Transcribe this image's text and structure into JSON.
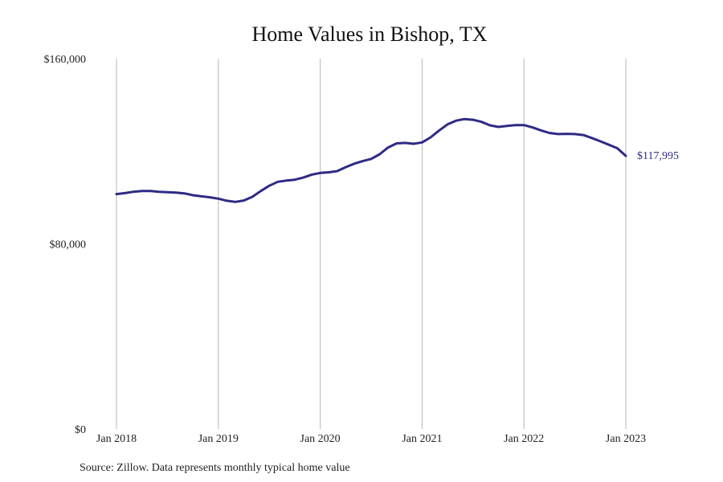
{
  "chart_data": {
    "type": "line",
    "title": "Home Values in Bishop, TX",
    "xlabel": "",
    "ylabel": "",
    "source": "Source: Zillow. Data represents monthly typical home value",
    "x_ticks": [
      {
        "label": "Jan 2018",
        "value": 0
      },
      {
        "label": "Jan 2019",
        "value": 12
      },
      {
        "label": "Jan 2020",
        "value": 24
      },
      {
        "label": "Jan 2021",
        "value": 36
      },
      {
        "label": "Jan 2022",
        "value": 48
      },
      {
        "label": "Jan 2023",
        "value": 60
      }
    ],
    "y_ticks": [
      {
        "label": "$160,000",
        "value": 160000
      },
      {
        "label": "$80,000",
        "value": 80000
      },
      {
        "label": "$0",
        "value": 0
      }
    ],
    "ylim": [
      0,
      160000
    ],
    "xlim": [
      0,
      60
    ],
    "grid": "vertical at x ticks",
    "line_color": "#2e2b85",
    "end_label": "$117,995",
    "series": [
      {
        "values": [
          101500,
          101900,
          102500,
          102800,
          102800,
          102500,
          102300,
          102100,
          101800,
          101000,
          100500,
          100100,
          99500,
          98600,
          98100,
          98700,
          100300,
          102800,
          105100,
          106800,
          107300,
          107700,
          108600,
          109900,
          110600,
          110900,
          111400,
          113100,
          114600,
          115700,
          116700,
          118700,
          121600,
          123400,
          123600,
          123200,
          123800,
          126000,
          128900,
          131600,
          133200,
          133900,
          133600,
          132700,
          131200,
          130500,
          130900,
          131300,
          131300,
          130300,
          129000,
          127900,
          127400,
          127500,
          127400,
          127000,
          125700,
          124300,
          122800,
          121300,
          117995
        ]
      }
    ]
  }
}
